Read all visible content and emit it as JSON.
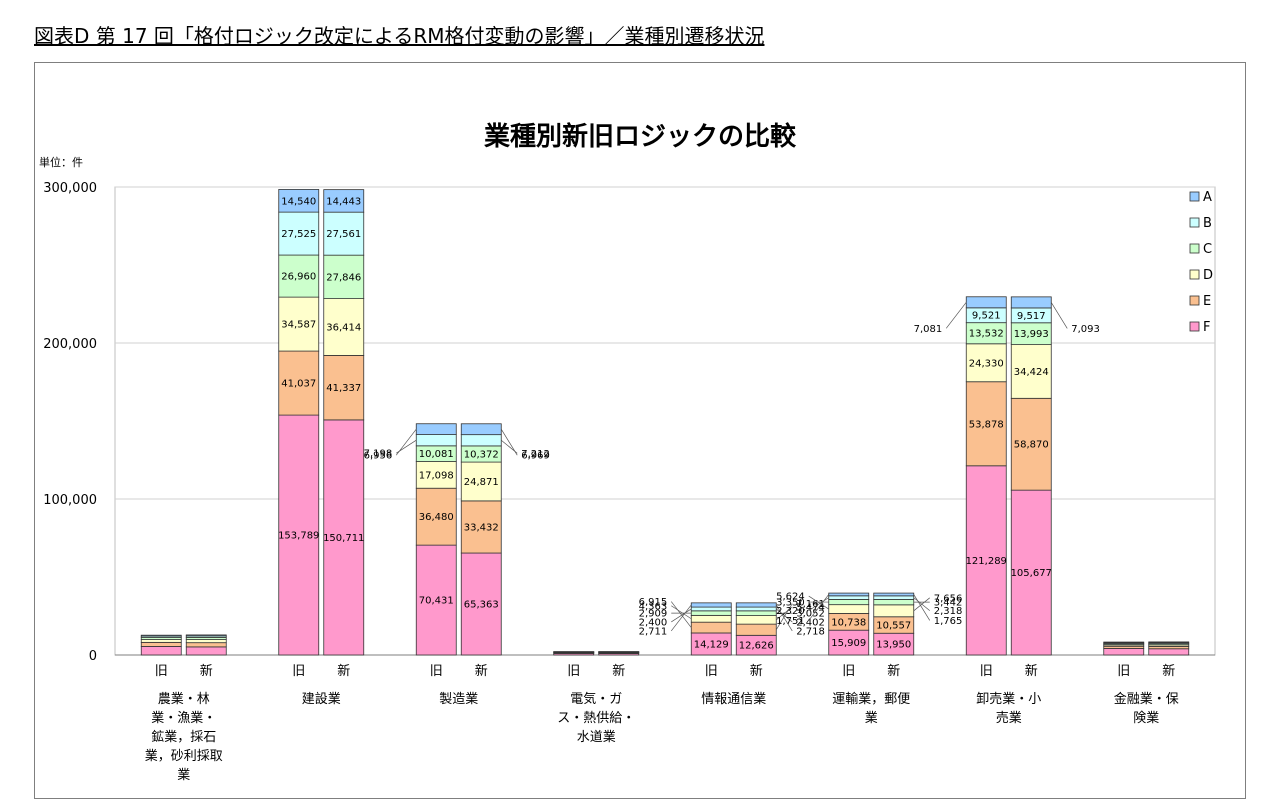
{
  "title": "図表D 第 17 回「格付ロジック改定によるRM格付変動の影響」／業種別遷移状況",
  "chart_data": {
    "type": "bar",
    "stacked": true,
    "title": "業種別新旧ロジックの比較",
    "unit_label": "単位：件",
    "ylim": [
      0,
      300000
    ],
    "ytick_values": [
      0,
      100000,
      200000,
      300000
    ],
    "ytick_labels": [
      "0",
      "100,000",
      "200,000",
      "300,000"
    ],
    "grid": true,
    "legend_position": "right",
    "categories": [
      {
        "name": "農業・林\n業・漁業・\n鉱業，採石\n業，砂利採取\n業"
      },
      {
        "name": "建設業"
      },
      {
        "name": "製造業"
      },
      {
        "name": "電気・ガ\nス・熱供給・\n水道業"
      },
      {
        "name": "情報通信業"
      },
      {
        "name": "運輸業，郵便\n業"
      },
      {
        "name": "卸売業・小\n売業"
      },
      {
        "name": "金融業・保\n険業"
      }
    ],
    "bar_labels": [
      "旧",
      "新"
    ],
    "series": [
      {
        "name": "F",
        "color": "#ff99cc",
        "values": [
          [
            5500,
            5200
          ],
          [
            153789,
            150711
          ],
          [
            70431,
            65363
          ],
          [
            1000,
            950
          ],
          [
            14129,
            12626
          ],
          [
            15909,
            13950
          ],
          [
            121289,
            105677
          ],
          [
            4200,
            4000
          ]
        ]
      },
      {
        "name": "E",
        "color": "#fac090",
        "values": [
          [
            2600,
            2700
          ],
          [
            41037,
            41337
          ],
          [
            36480,
            33432
          ],
          [
            400,
            420
          ],
          [
            6915,
            7161
          ],
          [
            10738,
            10557
          ],
          [
            53878,
            58870
          ],
          [
            1400,
            1500
          ]
        ]
      },
      {
        "name": "D",
        "color": "#ffffcc",
        "values": [
          [
            1800,
            2000
          ],
          [
            34587,
            36414
          ],
          [
            17098,
            24871
          ],
          [
            280,
            300
          ],
          [
            4363,
            5474
          ],
          [
            5624,
            7656
          ],
          [
            24330,
            34424
          ],
          [
            900,
            1000
          ]
        ]
      },
      {
        "name": "C",
        "color": "#ccffcc",
        "values": [
          [
            1300,
            1400
          ],
          [
            26960,
            27846
          ],
          [
            10081,
            10372
          ],
          [
            220,
            230
          ],
          [
            2909,
            3052
          ],
          [
            3350,
            3442
          ],
          [
            13532,
            13993
          ],
          [
            700,
            750
          ]
        ]
      },
      {
        "name": "B",
        "color": "#ccffff",
        "values": [
          [
            900,
            950
          ],
          [
            27525,
            27561
          ],
          [
            7198,
            7212
          ],
          [
            160,
            170
          ],
          [
            2400,
            2402
          ],
          [
            2320,
            2318
          ],
          [
            9521,
            9517
          ],
          [
            600,
            620
          ]
        ]
      },
      {
        "name": "A",
        "color": "#99ccff",
        "values": [
          [
            600,
            620
          ],
          [
            14540,
            14443
          ],
          [
            6956,
            6969
          ],
          [
            120,
            130
          ],
          [
            2711,
            2718
          ],
          [
            1751,
            1765
          ],
          [
            7081,
            7093
          ],
          [
            500,
            520
          ]
        ]
      }
    ],
    "data_labels": {
      "建設業": {
        "旧": [
          "153,789",
          "41,037",
          "34,587",
          "26,960",
          "27,525",
          "14,540"
        ],
        "新": [
          "150,711",
          "41,337",
          "36,414",
          "27,846",
          "27,561",
          "14,443"
        ]
      },
      "製造業": {
        "旧": [
          "70,431",
          "36,480",
          "17,098",
          "10,081",
          "7,198",
          "6,956"
        ],
        "新": [
          "65,363",
          "33,432",
          "24,871",
          "10,372",
          "7,212",
          "6,969"
        ]
      },
      "情報通信業": {
        "旧": [
          "14,129",
          "6,915",
          "4,363",
          "2,909",
          "2,400",
          "2,711"
        ],
        "新": [
          "12,626",
          "7,161",
          "5,474",
          "3,052",
          "2,402",
          "2,718"
        ]
      },
      "運輸業，郵便業": {
        "旧": [
          "15,909",
          "10,738",
          "5,624",
          "3,350",
          "2,320",
          "1,751"
        ],
        "新": [
          "13,950",
          "10,557",
          "7,656",
          "3,442",
          "2,318",
          "1,765"
        ]
      },
      "卸売業・小売業": {
        "旧": [
          "121,289",
          "53,878",
          "24,330",
          "13,532",
          "9,521",
          "7,081"
        ],
        "新": [
          "105,677",
          "58,870",
          "34,424",
          "13,993",
          "9,517",
          "7,093"
        ]
      }
    }
  }
}
